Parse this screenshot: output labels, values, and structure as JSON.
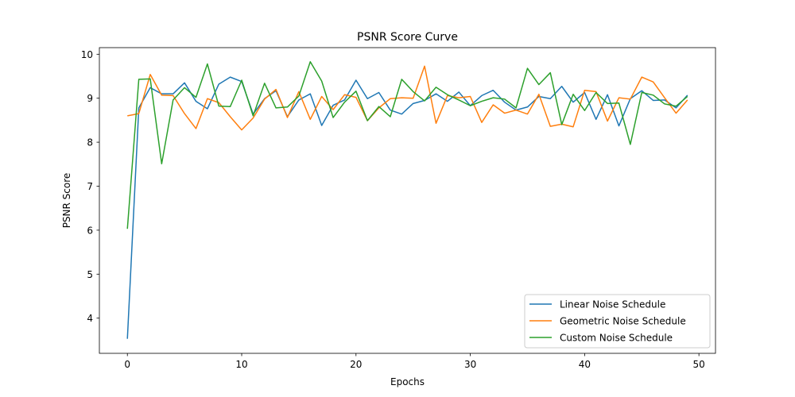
{
  "chart_data": {
    "type": "line",
    "title": "PSNR Score Curve",
    "xlabel": "Epochs",
    "ylabel": "PSNR Score",
    "xlim": [
      -2.45,
      51.45
    ],
    "ylim": [
      3.2,
      10.15
    ],
    "xticks": [
      0,
      10,
      20,
      30,
      40,
      50
    ],
    "yticks": [
      4,
      5,
      6,
      7,
      8,
      9,
      10
    ],
    "grid": false,
    "legend_position": "lower-right",
    "x": [
      0,
      1,
      2,
      3,
      4,
      5,
      6,
      7,
      8,
      9,
      10,
      11,
      12,
      13,
      14,
      15,
      16,
      17,
      18,
      19,
      20,
      21,
      22,
      23,
      24,
      25,
      26,
      27,
      28,
      29,
      30,
      31,
      32,
      33,
      34,
      35,
      36,
      37,
      38,
      39,
      40,
      41,
      42,
      43,
      44,
      45,
      46,
      47,
      48,
      49
    ],
    "series": [
      {
        "name": "Linear Noise Schedule",
        "color": "#1f77b4",
        "values": [
          3.53,
          8.78,
          9.24,
          9.1,
          9.1,
          9.35,
          8.93,
          8.76,
          9.32,
          9.48,
          9.38,
          8.64,
          8.99,
          9.17,
          8.58,
          8.96,
          9.1,
          8.38,
          8.84,
          8.96,
          9.41,
          8.99,
          9.13,
          8.73,
          8.64,
          8.88,
          8.95,
          9.1,
          8.93,
          9.14,
          8.83,
          9.06,
          9.18,
          8.91,
          8.73,
          8.8,
          9.04,
          8.99,
          9.27,
          8.91,
          9.13,
          8.52,
          9.08,
          8.37,
          8.99,
          9.17,
          8.95,
          8.96,
          8.78,
          9.07
        ]
      },
      {
        "name": "Geometric Noise Schedule",
        "color": "#ff7f0e",
        "values": [
          8.6,
          8.65,
          9.54,
          9.07,
          9.06,
          8.65,
          8.31,
          8.99,
          8.9,
          8.58,
          8.28,
          8.55,
          8.98,
          9.2,
          8.56,
          9.15,
          8.52,
          9.04,
          8.74,
          9.08,
          9.02,
          8.49,
          8.78,
          8.99,
          9.01,
          9.0,
          9.73,
          8.43,
          9.06,
          9.01,
          9.04,
          8.45,
          8.85,
          8.66,
          8.73,
          8.64,
          9.09,
          8.36,
          8.41,
          8.35,
          9.18,
          9.15,
          8.48,
          9.01,
          8.98,
          9.48,
          9.37,
          9.01,
          8.66,
          8.96
        ]
      },
      {
        "name": "Custom Noise Schedule",
        "color": "#2ca02c",
        "values": [
          6.03,
          9.43,
          9.44,
          7.51,
          8.96,
          9.24,
          9.02,
          9.78,
          8.82,
          8.81,
          9.41,
          8.6,
          9.34,
          8.78,
          8.8,
          9.05,
          9.83,
          9.39,
          8.56,
          8.91,
          9.16,
          8.49,
          8.81,
          8.58,
          9.43,
          9.15,
          8.94,
          9.25,
          9.08,
          8.96,
          8.83,
          8.93,
          9.01,
          8.98,
          8.78,
          9.68,
          9.31,
          9.58,
          8.4,
          9.09,
          8.72,
          9.13,
          8.88,
          8.89,
          7.95,
          9.13,
          9.07,
          8.87,
          8.82,
          9.04
        ]
      }
    ]
  }
}
